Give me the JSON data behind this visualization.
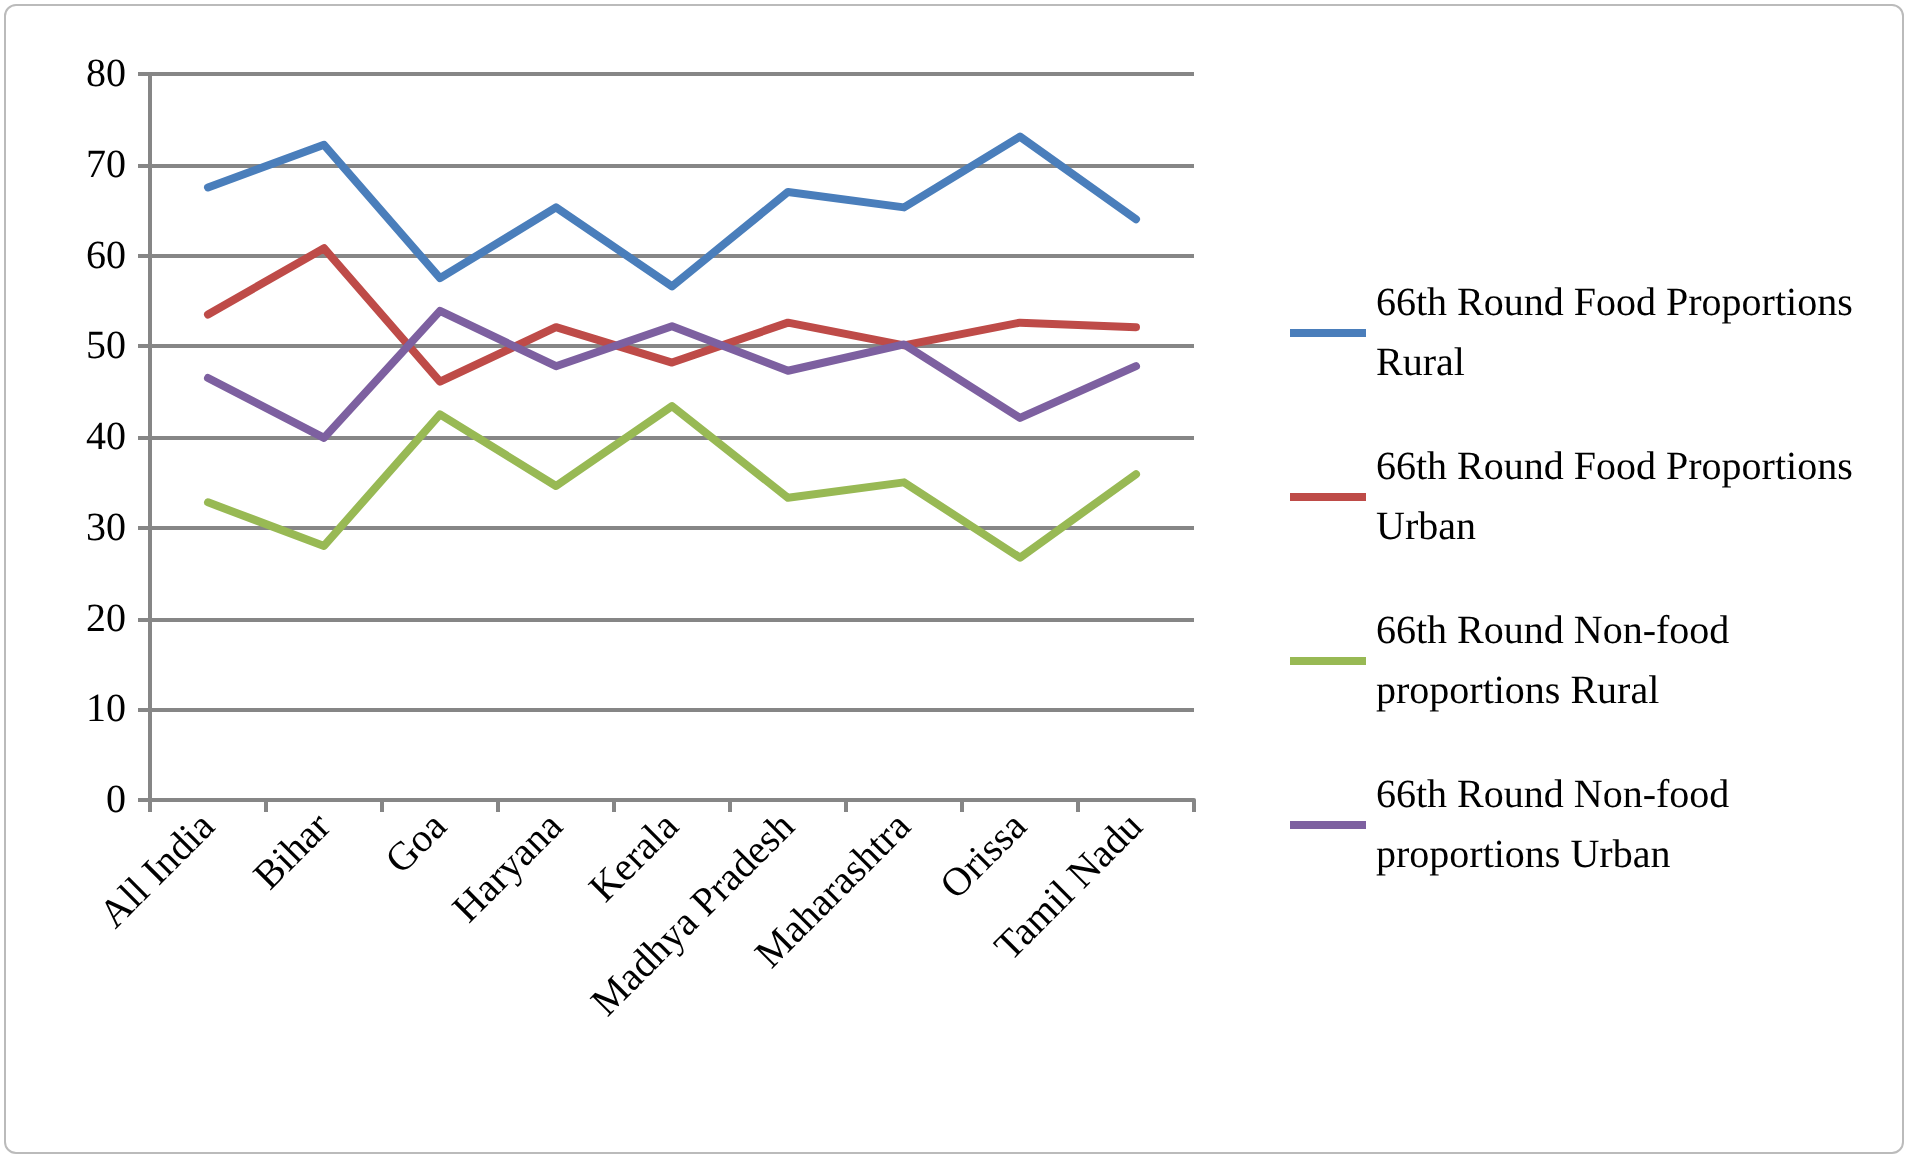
{
  "chart_data": {
    "type": "line",
    "categories": [
      "All India",
      "Bihar",
      "Goa",
      "Haryana",
      "Kerala",
      "Madhya Pradesh",
      "Maharashtra",
      "Orissa",
      "Tamil Nadu"
    ],
    "series": [
      {
        "name": "66th Round Food Proportions Rural",
        "color": "#4a7ebb",
        "values": [
          67.5,
          72.2,
          57.5,
          65.3,
          56.6,
          67,
          65.3,
          73.1,
          64
        ]
      },
      {
        "name": "66th Round Food Proportions Urban",
        "color": "#be4b48",
        "values": [
          53.5,
          60.8,
          46.1,
          52.1,
          48.2,
          52.6,
          50.1,
          52.6,
          52.1
        ]
      },
      {
        "name": "66th Round Non-food proportions Rural",
        "color": "#98b954",
        "values": [
          32.8,
          28,
          42.5,
          34.6,
          43.4,
          33.3,
          35,
          26.7,
          35.9
        ]
      },
      {
        "name": "66th Round Non-food proportions Urban",
        "color": "#7d60a0",
        "values": [
          46.5,
          39.9,
          53.9,
          47.8,
          52.2,
          47.3,
          50.2,
          42.1,
          47.8
        ]
      }
    ],
    "ylim": [
      0,
      80
    ],
    "yticks": [
      0,
      10,
      20,
      30,
      40,
      50,
      60,
      70,
      80
    ],
    "grid": "y",
    "legend": "right",
    "marker": "none",
    "line_style": "solid"
  }
}
